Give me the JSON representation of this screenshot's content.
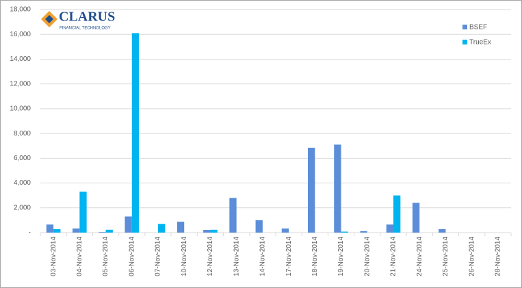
{
  "logo": {
    "name": "CLARUS",
    "tagline": "FINANCIAL TECHNOLOGY"
  },
  "chart_data": {
    "type": "bar",
    "categories": [
      "03-Nov-2014",
      "04-Nov-2014",
      "05-Nov-2014",
      "06-Nov-2014",
      "07-Nov-2014",
      "10-Nov-2014",
      "12-Nov-2014",
      "13-Nov-2014",
      "14-Nov-2014",
      "17-Nov-2014",
      "18-Nov-2014",
      "19-Nov-2014",
      "20-Nov-2014",
      "21-Nov-2014",
      "24-Nov-2014",
      "25-Nov-2014",
      "26-Nov-2014",
      "28-Nov-2014"
    ],
    "series": [
      {
        "name": "BSEF",
        "color": "#5b8dd9",
        "values": [
          650,
          330,
          50,
          1300,
          0,
          880,
          220,
          2800,
          1000,
          330,
          6850,
          7100,
          120,
          650,
          2400,
          280,
          0,
          0
        ]
      },
      {
        "name": "TrueEx",
        "color": "#00b4f0",
        "values": [
          280,
          3300,
          230,
          16100,
          700,
          0,
          230,
          0,
          0,
          0,
          0,
          80,
          0,
          3000,
          0,
          0,
          0,
          0
        ]
      }
    ],
    "ylim": [
      0,
      18000
    ],
    "yticks": [
      {
        "value": 0,
        "label": "-"
      },
      {
        "value": 2000,
        "label": "2,000"
      },
      {
        "value": 4000,
        "label": "4,000"
      },
      {
        "value": 6000,
        "label": "6,000"
      },
      {
        "value": 8000,
        "label": "8,000"
      },
      {
        "value": 10000,
        "label": "10,000"
      },
      {
        "value": 12000,
        "label": "12,000"
      },
      {
        "value": 14000,
        "label": "14,000"
      },
      {
        "value": 16000,
        "label": "16,000"
      },
      {
        "value": 18000,
        "label": "18,000"
      }
    ],
    "grid": true,
    "legend": "top-right"
  }
}
